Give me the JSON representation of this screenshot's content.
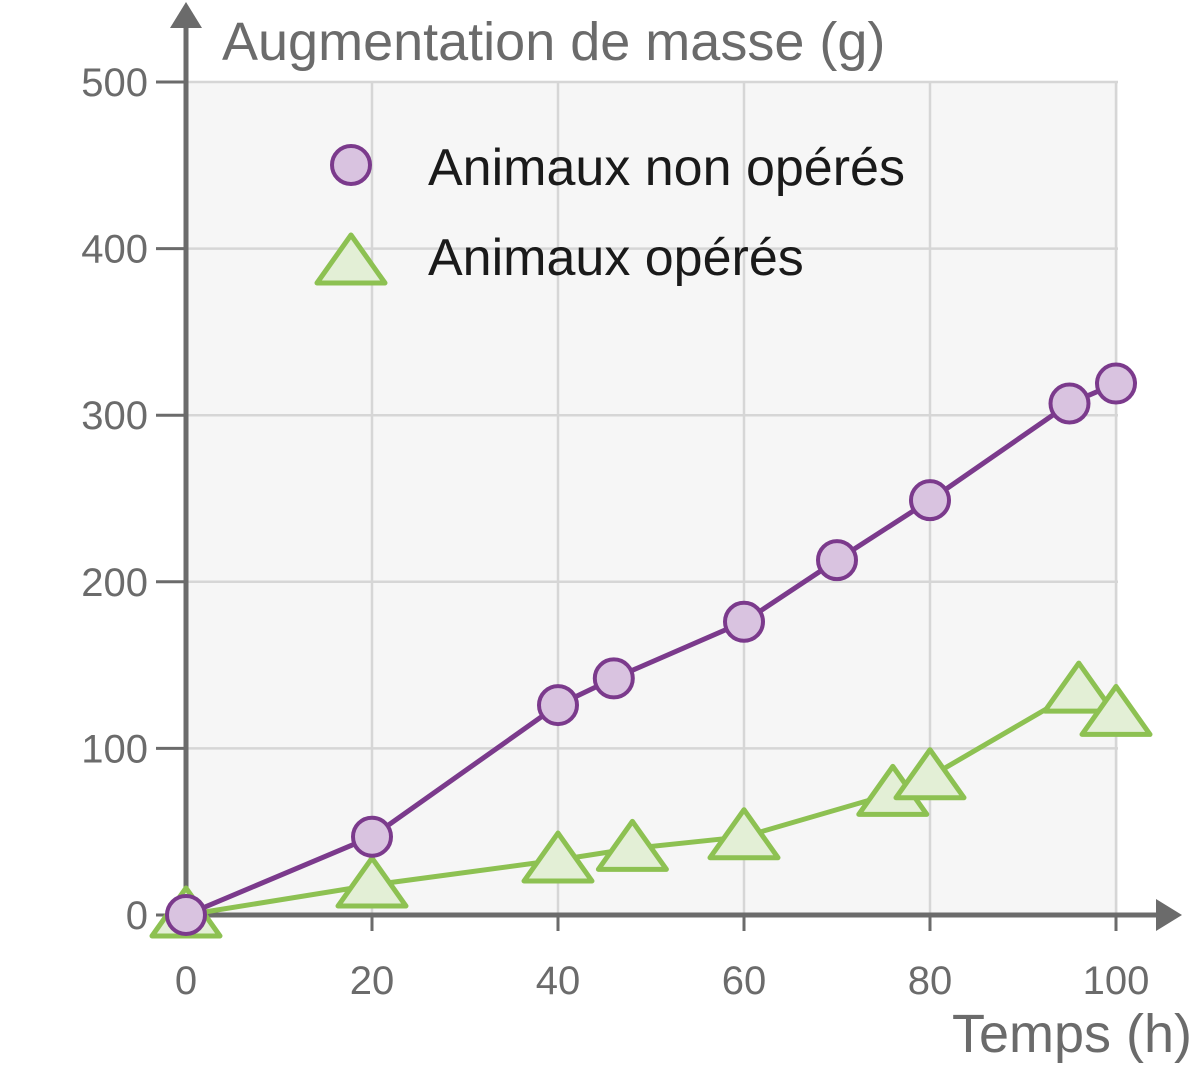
{
  "chart_data": {
    "type": "line",
    "ylabel": "Augmentation de masse (g)",
    "xlabel": "Temps (h)",
    "xlim": [
      0,
      100
    ],
    "ylim": [
      0,
      500
    ],
    "xticks": [
      "0",
      "20",
      "40",
      "60",
      "80",
      "100"
    ],
    "yticks": [
      "0",
      "100",
      "200",
      "300",
      "400",
      "500"
    ],
    "grid": true,
    "legend_position": "top-left",
    "series": [
      {
        "name": "Animaux non opérés",
        "marker": "circle",
        "color": "#7b3a8c",
        "fill": "#d9c3e0",
        "x": [
          0,
          20,
          40,
          46,
          60,
          70,
          80,
          95,
          100
        ],
        "y": [
          0,
          47,
          126,
          142,
          176,
          213,
          249,
          307,
          319
        ]
      },
      {
        "name": "Animaux opérés",
        "marker": "triangle",
        "color": "#8dc152",
        "fill": "#e3efd6",
        "x": [
          0,
          20,
          40,
          48,
          60,
          76,
          80,
          96,
          100
        ],
        "y": [
          0,
          18,
          33,
          40,
          47,
          73,
          83,
          135,
          121
        ]
      }
    ]
  }
}
